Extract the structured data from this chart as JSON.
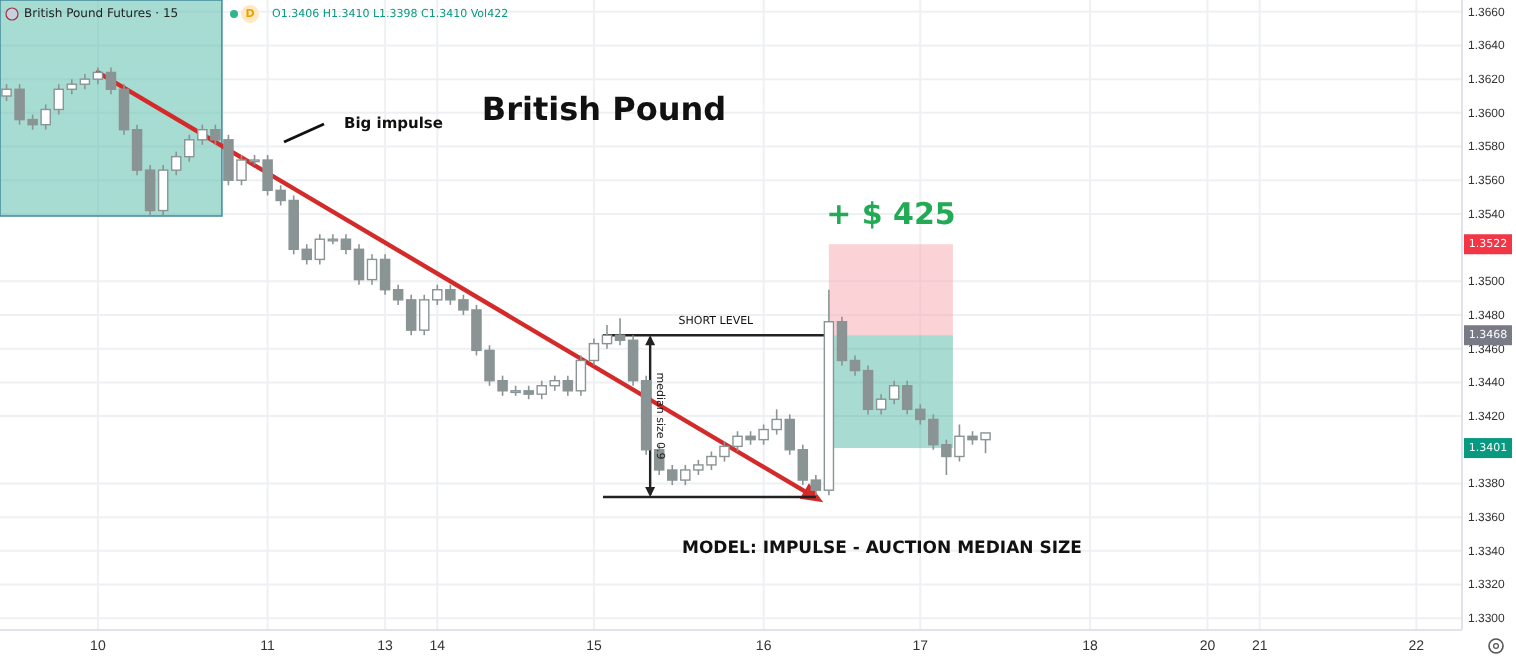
{
  "chart_data": {
    "type": "candlestick",
    "title": "British Pound",
    "color": "#8a9494",
    "categories": [
      null,
      null,
      null,
      null,
      null,
      null,
      null,
      "10",
      null,
      null,
      null,
      null,
      null,
      null,
      null,
      null,
      null,
      null,
      null,
      null,
      "11",
      null,
      null,
      null,
      null,
      null,
      null,
      null,
      null,
      "13",
      null,
      null,
      null,
      "14",
      null,
      null,
      null,
      null,
      null,
      null,
      null,
      null,
      null,
      null,
      null,
      "15",
      null,
      null,
      null,
      null,
      null,
      null,
      null,
      null,
      null,
      null,
      null,
      null,
      "16",
      null,
      null,
      null,
      null,
      null,
      null,
      null,
      null,
      null,
      null,
      null,
      "17",
      null,
      null,
      null,
      null,
      null,
      null,
      null,
      null,
      null,
      null,
      null,
      null,
      "18",
      null,
      null,
      null,
      null,
      null,
      null,
      null,
      null,
      "20",
      null,
      null,
      null,
      "21",
      null,
      null,
      null,
      null,
      null,
      null,
      null,
      null,
      null,
      null,
      null,
      "22",
      null,
      null,
      null
    ],
    "ohlc": [
      [
        1.361,
        1.3617,
        1.3607,
        1.3614
      ],
      [
        1.3614,
        1.3617,
        1.3593,
        1.3596
      ],
      [
        1.3596,
        1.3599,
        1.359,
        1.3593
      ],
      [
        1.3593,
        1.3605,
        1.359,
        1.3602
      ],
      [
        1.3602,
        1.3617,
        1.3599,
        1.3614
      ],
      [
        1.3614,
        1.362,
        1.3611,
        1.3617
      ],
      [
        1.3617,
        1.3623,
        1.3614,
        1.362
      ],
      [
        1.362,
        1.3627,
        1.3617,
        1.3624
      ],
      [
        1.3624,
        1.3627,
        1.3611,
        1.3614
      ],
      [
        1.3614,
        1.3617,
        1.3587,
        1.359
      ],
      [
        1.359,
        1.3593,
        1.3563,
        1.3566
      ],
      [
        1.3566,
        1.3569,
        1.3539,
        1.3542
      ],
      [
        1.3542,
        1.3569,
        1.3539,
        1.3566
      ],
      [
        1.3566,
        1.3577,
        1.3563,
        1.3574
      ],
      [
        1.3574,
        1.3587,
        1.3571,
        1.3584
      ],
      [
        1.3584,
        1.3593,
        1.3581,
        1.359
      ],
      [
        1.359,
        1.3593,
        1.3581,
        1.3584
      ],
      [
        1.3584,
        1.3587,
        1.3557,
        1.356
      ],
      [
        1.356,
        1.3575,
        1.3557,
        1.3572
      ],
      [
        1.3572,
        1.3575,
        1.3569,
        1.3572
      ],
      [
        1.3572,
        1.3575,
        1.3551,
        1.3554
      ],
      [
        1.3554,
        1.3557,
        1.3545,
        1.3548
      ],
      [
        1.3548,
        1.3551,
        1.3516,
        1.3519
      ],
      [
        1.3519,
        1.3522,
        1.351,
        1.3513
      ],
      [
        1.3513,
        1.3528,
        1.351,
        1.3525
      ],
      [
        1.3525,
        1.3528,
        1.3522,
        1.3525
      ],
      [
        1.3525,
        1.3528,
        1.3516,
        1.3519
      ],
      [
        1.3519,
        1.3522,
        1.3498,
        1.3501
      ],
      [
        1.3501,
        1.3516,
        1.3498,
        1.3513
      ],
      [
        1.3513,
        1.3516,
        1.3492,
        1.3495
      ],
      [
        1.3495,
        1.3498,
        1.3486,
        1.3489
      ],
      [
        1.3489,
        1.3492,
        1.3468,
        1.3471
      ],
      [
        1.3471,
        1.3492,
        1.3468,
        1.3489
      ],
      [
        1.3489,
        1.3498,
        1.3486,
        1.3495
      ],
      [
        1.3495,
        1.3498,
        1.3486,
        1.3489
      ],
      [
        1.3489,
        1.3492,
        1.348,
        1.3483
      ],
      [
        1.3483,
        1.3486,
        1.3456,
        1.3459
      ],
      [
        1.3459,
        1.3462,
        1.3438,
        1.3441
      ],
      [
        1.3441,
        1.3444,
        1.3432,
        1.3435
      ],
      [
        1.3435,
        1.3438,
        1.3432,
        1.3435
      ],
      [
        1.3435,
        1.3438,
        1.343,
        1.3433
      ],
      [
        1.3433,
        1.3441,
        1.343,
        1.3438
      ],
      [
        1.3438,
        1.3444,
        1.3435,
        1.3441
      ],
      [
        1.3441,
        1.3444,
        1.3432,
        1.3435
      ],
      [
        1.3435,
        1.3456,
        1.3432,
        1.3453
      ],
      [
        1.3453,
        1.3466,
        1.345,
        1.3463
      ],
      [
        1.3463,
        1.3474,
        1.346,
        1.3468
      ],
      [
        1.3468,
        1.3478,
        1.3462,
        1.3465
      ],
      [
        1.3465,
        1.3468,
        1.3438,
        1.3441
      ],
      [
        1.3441,
        1.3444,
        1.3397,
        1.34
      ],
      [
        1.34,
        1.3403,
        1.3385,
        1.3388
      ],
      [
        1.3388,
        1.3391,
        1.3379,
        1.3382
      ],
      [
        1.3382,
        1.3391,
        1.3379,
        1.3388
      ],
      [
        1.3388,
        1.3394,
        1.3385,
        1.3391
      ],
      [
        1.3391,
        1.3399,
        1.3388,
        1.3396
      ],
      [
        1.3396,
        1.3405,
        1.3393,
        1.3402
      ],
      [
        1.3402,
        1.3411,
        1.3399,
        1.3408
      ],
      [
        1.3408,
        1.3411,
        1.3403,
        1.3406
      ],
      [
        1.3406,
        1.3415,
        1.3403,
        1.3412
      ],
      [
        1.3412,
        1.3424,
        1.3409,
        1.3418
      ],
      [
        1.3418,
        1.3421,
        1.3397,
        1.34
      ],
      [
        1.34,
        1.3403,
        1.3379,
        1.3382
      ],
      [
        1.3382,
        1.3385,
        1.3373,
        1.3376
      ],
      [
        1.3376,
        1.3495,
        1.3373,
        1.3476
      ],
      [
        1.3476,
        1.3479,
        1.345,
        1.3453
      ],
      [
        1.3453,
        1.3456,
        1.3444,
        1.3447
      ],
      [
        1.3447,
        1.345,
        1.3421,
        1.3424
      ],
      [
        1.3424,
        1.3433,
        1.3421,
        1.343
      ],
      [
        1.343,
        1.3441,
        1.3427,
        1.3438
      ],
      [
        1.3438,
        1.3441,
        1.3421,
        1.3424
      ],
      [
        1.3424,
        1.3427,
        1.3415,
        1.3418
      ],
      [
        1.3418,
        1.3421,
        1.34,
        1.3403
      ],
      [
        1.3403,
        1.3406,
        1.3385,
        1.3396
      ],
      [
        1.3396,
        1.3415,
        1.3393,
        1.3408
      ],
      [
        1.3408,
        1.3411,
        1.3403,
        1.3406
      ],
      [
        1.3406,
        1.341,
        1.3398,
        1.341
      ],
      null,
      null,
      null,
      null,
      null,
      null,
      null,
      null,
      null,
      null,
      null,
      null,
      null,
      null,
      null,
      null,
      null,
      null,
      null,
      null,
      null,
      null,
      null,
      null,
      null,
      null,
      null,
      null,
      null,
      null,
      null,
      null,
      null,
      null,
      null,
      null
    ],
    "ylim": [
      1.3293,
      1.3667
    ],
    "yticks": [
      {
        "value": 1.33,
        "label": "1.3300"
      },
      {
        "value": 1.332,
        "label": "1.3320"
      },
      {
        "value": 1.334,
        "label": "1.3340"
      },
      {
        "value": 1.336,
        "label": "1.3360"
      },
      {
        "value": 1.338,
        "label": "1.3380"
      },
      {
        "value": 1.342,
        "label": "1.3420"
      },
      {
        "value": 1.344,
        "label": "1.3440"
      },
      {
        "value": 1.346,
        "label": "1.3460"
      },
      {
        "value": 1.348,
        "label": "1.3480"
      },
      {
        "value": 1.35,
        "label": "1.3500"
      },
      {
        "value": 1.354,
        "label": "1.3540"
      },
      {
        "value": 1.356,
        "label": "1.3560"
      },
      {
        "value": 1.358,
        "label": "1.3580"
      },
      {
        "value": 1.36,
        "label": "1.3600"
      },
      {
        "value": 1.362,
        "label": "1.3620"
      },
      {
        "value": 1.364,
        "label": "1.3640"
      },
      {
        "value": 1.366,
        "label": "1.3660"
      }
    ],
    "grid": true,
    "annotations": [
      "British Pound Futures · 15",
      "D",
      "O1.3406 H1.3410 L1.3398 C1.3410 Vol422",
      "Big impulse",
      "+ $ 425",
      "SHORT LEVEL",
      "median size 0.9",
      "MODEL: IMPULSE - AUCTION MEDIAN SIZE",
      "1.3522",
      "1.3468",
      "1.3401"
    ]
  }
}
